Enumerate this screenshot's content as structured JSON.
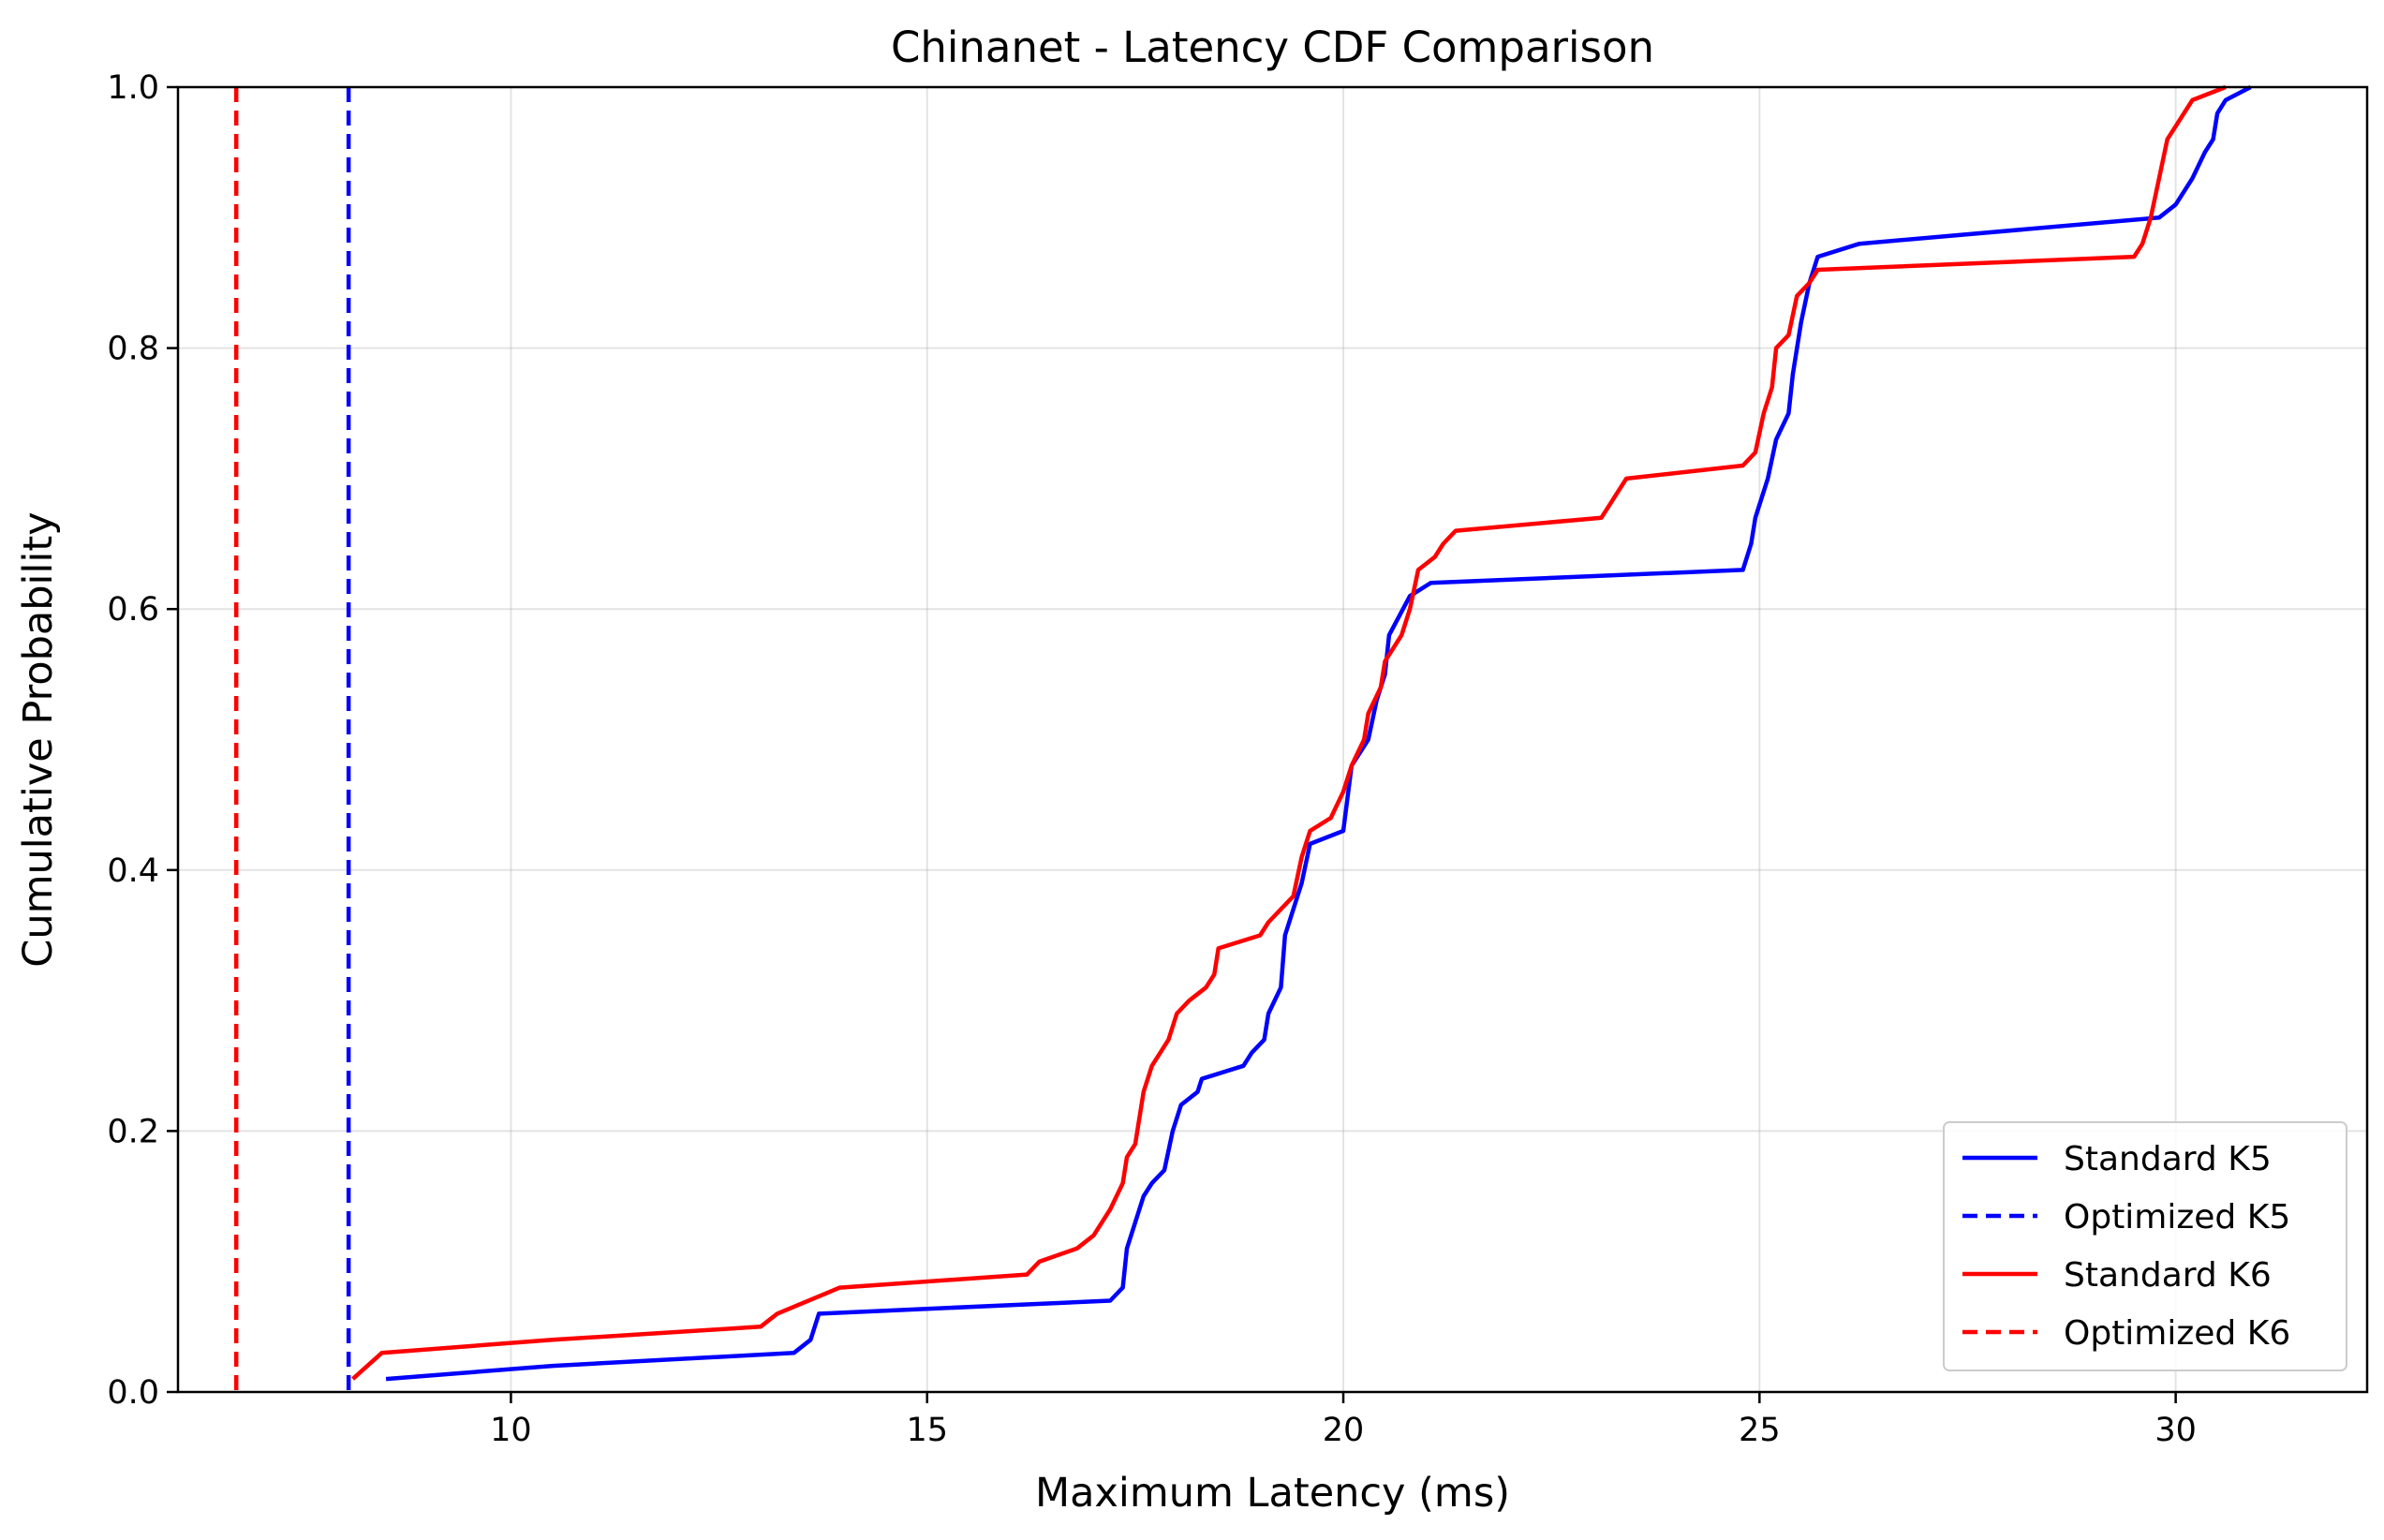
{
  "chart_data": {
    "type": "line",
    "title": "Chinanet - Latency CDF Comparison",
    "xlabel": "Maximum Latency (ms)",
    "ylabel": "Cumulative Probability",
    "xlim": [
      6.0,
      32.3
    ],
    "ylim": [
      0.0,
      1.0
    ],
    "x_ticks": [
      10,
      15,
      20,
      25,
      30
    ],
    "x_tick_labels": [
      "10",
      "15",
      "20",
      "25",
      "30"
    ],
    "y_ticks": [
      0.0,
      0.2,
      0.4,
      0.6,
      0.8,
      1.0
    ],
    "y_tick_labels": [
      "0.0",
      "0.2",
      "0.4",
      "0.6",
      "0.8",
      "1.0"
    ],
    "grid": true,
    "legend_position": "lower-right",
    "series": [
      {
        "name": "Standard K5",
        "style": "solid",
        "color": "#0000ff",
        "points": [
          [
            8.5,
            0.01
          ],
          [
            10.5,
            0.02
          ],
          [
            13.4,
            0.03
          ],
          [
            13.6,
            0.04
          ],
          [
            13.7,
            0.06
          ],
          [
            17.2,
            0.07
          ],
          [
            17.35,
            0.08
          ],
          [
            17.4,
            0.11
          ],
          [
            17.5,
            0.13
          ],
          [
            17.6,
            0.15
          ],
          [
            17.7,
            0.16
          ],
          [
            17.85,
            0.17
          ],
          [
            17.95,
            0.2
          ],
          [
            18.05,
            0.22
          ],
          [
            18.25,
            0.23
          ],
          [
            18.3,
            0.24
          ],
          [
            18.8,
            0.25
          ],
          [
            18.9,
            0.26
          ],
          [
            19.05,
            0.27
          ],
          [
            19.1,
            0.29
          ],
          [
            19.25,
            0.31
          ],
          [
            19.3,
            0.35
          ],
          [
            19.4,
            0.37
          ],
          [
            19.5,
            0.39
          ],
          [
            19.6,
            0.42
          ],
          [
            20.0,
            0.43
          ],
          [
            20.1,
            0.48
          ],
          [
            20.3,
            0.5
          ],
          [
            20.4,
            0.53
          ],
          [
            20.5,
            0.55
          ],
          [
            20.55,
            0.58
          ],
          [
            20.8,
            0.61
          ],
          [
            21.05,
            0.62
          ],
          [
            24.8,
            0.63
          ],
          [
            24.9,
            0.65
          ],
          [
            24.95,
            0.67
          ],
          [
            25.1,
            0.7
          ],
          [
            25.2,
            0.73
          ],
          [
            25.35,
            0.75
          ],
          [
            25.4,
            0.78
          ],
          [
            25.5,
            0.82
          ],
          [
            25.6,
            0.85
          ],
          [
            25.7,
            0.87
          ],
          [
            26.2,
            0.88
          ],
          [
            29.8,
            0.9
          ],
          [
            30.0,
            0.91
          ],
          [
            30.2,
            0.93
          ],
          [
            30.35,
            0.95
          ],
          [
            30.45,
            0.96
          ],
          [
            30.5,
            0.98
          ],
          [
            30.6,
            0.99
          ],
          [
            30.9,
            1.0
          ]
        ]
      },
      {
        "name": "Optimized K5",
        "style": "dashed",
        "color": "#0000ff",
        "vertical_x": 8.05
      },
      {
        "name": "Standard K6",
        "style": "solid",
        "color": "#ff0000",
        "points": [
          [
            8.1,
            0.01
          ],
          [
            8.45,
            0.03
          ],
          [
            10.5,
            0.04
          ],
          [
            13.0,
            0.05
          ],
          [
            13.2,
            0.06
          ],
          [
            13.95,
            0.08
          ],
          [
            16.2,
            0.09
          ],
          [
            16.35,
            0.1
          ],
          [
            16.8,
            0.11
          ],
          [
            17.0,
            0.12
          ],
          [
            17.2,
            0.14
          ],
          [
            17.35,
            0.16
          ],
          [
            17.4,
            0.18
          ],
          [
            17.5,
            0.19
          ],
          [
            17.6,
            0.23
          ],
          [
            17.7,
            0.25
          ],
          [
            17.9,
            0.27
          ],
          [
            18.0,
            0.29
          ],
          [
            18.15,
            0.3
          ],
          [
            18.35,
            0.31
          ],
          [
            18.45,
            0.32
          ],
          [
            18.5,
            0.34
          ],
          [
            19.0,
            0.35
          ],
          [
            19.1,
            0.36
          ],
          [
            19.4,
            0.38
          ],
          [
            19.5,
            0.41
          ],
          [
            19.6,
            0.43
          ],
          [
            19.85,
            0.44
          ],
          [
            20.0,
            0.46
          ],
          [
            20.1,
            0.48
          ],
          [
            20.25,
            0.5
          ],
          [
            20.3,
            0.52
          ],
          [
            20.45,
            0.54
          ],
          [
            20.5,
            0.56
          ],
          [
            20.7,
            0.58
          ],
          [
            20.8,
            0.6
          ],
          [
            20.9,
            0.63
          ],
          [
            21.1,
            0.64
          ],
          [
            21.2,
            0.65
          ],
          [
            21.35,
            0.66
          ],
          [
            23.1,
            0.67
          ],
          [
            23.2,
            0.68
          ],
          [
            23.3,
            0.69
          ],
          [
            23.4,
            0.7
          ],
          [
            24.8,
            0.71
          ],
          [
            24.95,
            0.72
          ],
          [
            25.05,
            0.75
          ],
          [
            25.15,
            0.77
          ],
          [
            25.2,
            0.8
          ],
          [
            25.35,
            0.81
          ],
          [
            25.45,
            0.84
          ],
          [
            25.6,
            0.85
          ],
          [
            25.7,
            0.86
          ],
          [
            29.5,
            0.87
          ],
          [
            29.6,
            0.88
          ],
          [
            29.7,
            0.9
          ],
          [
            29.8,
            0.93
          ],
          [
            29.9,
            0.96
          ],
          [
            30.0,
            0.97
          ],
          [
            30.1,
            0.98
          ],
          [
            30.2,
            0.99
          ],
          [
            30.6,
            1.0
          ]
        ]
      },
      {
        "name": "Optimized K6",
        "style": "dashed",
        "color": "#ff0000",
        "vertical_x": 6.7
      }
    ]
  }
}
